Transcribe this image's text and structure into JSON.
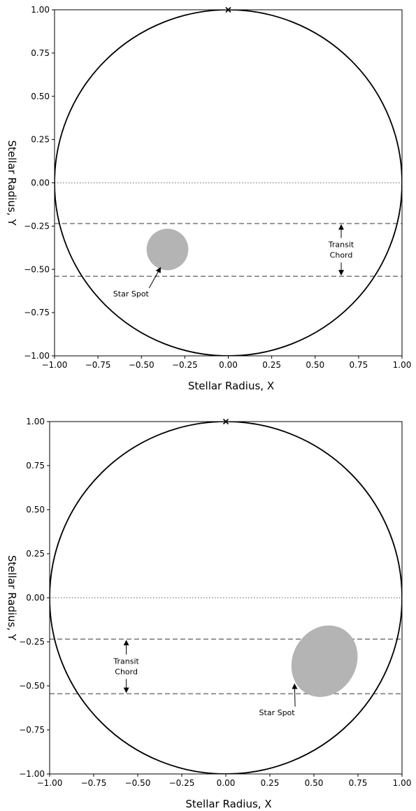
{
  "chart_data": [
    {
      "type": "scatter",
      "xlabel": "Stellar Radius, X",
      "ylabel": "Stellar Radius, Y",
      "xlim": [
        -1.0,
        1.0
      ],
      "ylim": [
        -1.0,
        1.0
      ],
      "xticks": [
        "−1.00",
        "−0.75",
        "−0.50",
        "−0.25",
        "0.00",
        "0.25",
        "0.50",
        "0.75",
        "1.00"
      ],
      "yticks": [
        "1.00",
        "0.75",
        "0.50",
        "0.25",
        "0.00",
        "−0.25",
        "−0.50",
        "−0.75",
        "−1.00"
      ],
      "grid": false,
      "stellar_disk": {
        "center": [
          0,
          0
        ],
        "radius": 1.0
      },
      "marker": {
        "x": 0.0,
        "y": 1.0,
        "symbol": "x"
      },
      "equator_y": 0.0,
      "transit_chord": {
        "y_upper": -0.235,
        "y_lower": -0.54
      },
      "star_spot": {
        "x": -0.35,
        "y": -0.385,
        "rx": 0.12,
        "ry": 0.12,
        "angle": 0
      },
      "annotations": {
        "spot_label": "Star Spot",
        "spot_label_pos": [
          -0.56,
          -0.64
        ],
        "spot_arrow_tip": [
          -0.39,
          -0.49
        ],
        "chord_line1": "Transit",
        "chord_line2": "Chord",
        "chord_x": 0.65
      },
      "colors": {
        "disk": "#000000",
        "chord": "#808080",
        "equator": "#909090",
        "spot": "#b4b4b4"
      }
    },
    {
      "type": "scatter",
      "xlabel": "Stellar Radius, X",
      "ylabel": "Stellar Radius, Y",
      "xlim": [
        -1.0,
        1.0
      ],
      "ylim": [
        -1.0,
        1.0
      ],
      "xticks": [
        "−1.00",
        "−0.75",
        "−0.50",
        "−0.25",
        "0.00",
        "0.25",
        "0.50",
        "0.75",
        "1.00"
      ],
      "yticks": [
        "1.00",
        "0.75",
        "0.50",
        "0.25",
        "0.00",
        "−0.25",
        "−0.50",
        "−0.75",
        "−1.00"
      ],
      "grid": false,
      "stellar_disk": {
        "center": [
          0,
          0
        ],
        "radius": 1.0
      },
      "marker": {
        "x": 0.0,
        "y": 1.0,
        "symbol": "x"
      },
      "equator_y": 0.0,
      "transit_chord": {
        "y_upper": -0.235,
        "y_lower": -0.545
      },
      "star_spot": {
        "x": 0.56,
        "y": -0.36,
        "rx": 0.18,
        "ry": 0.21,
        "angle": 30
      },
      "annotations": {
        "spot_label": "Star Spot",
        "spot_label_pos": [
          0.29,
          -0.65
        ],
        "spot_arrow_tip": [
          0.39,
          -0.49
        ],
        "chord_line1": "Transit",
        "chord_line2": "Chord",
        "chord_x": -0.565
      },
      "colors": {
        "disk": "#000000",
        "chord": "#808080",
        "equator": "#909090",
        "spot": "#b4b4b4"
      }
    }
  ]
}
